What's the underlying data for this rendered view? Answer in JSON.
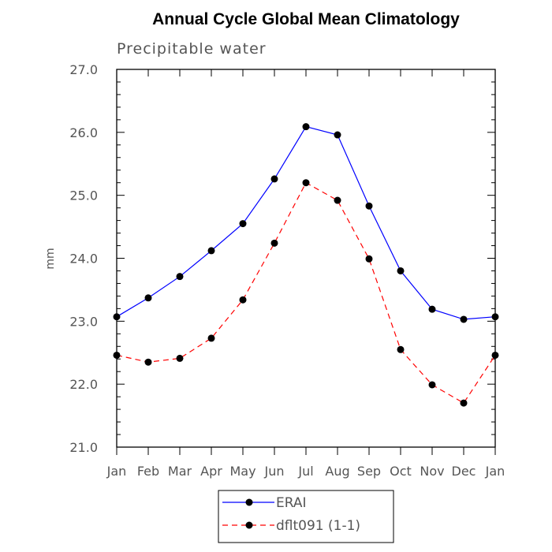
{
  "chart_data": {
    "type": "line",
    "title": "Annual Cycle Global Mean Climatology",
    "subtitle": "Precipitable water",
    "xlabel": "",
    "ylabel": "mm",
    "categories": [
      "Jan",
      "Feb",
      "Mar",
      "Apr",
      "May",
      "Jun",
      "Jul",
      "Aug",
      "Sep",
      "Oct",
      "Nov",
      "Dec",
      "Jan"
    ],
    "ylim": [
      21.0,
      27.0
    ],
    "yticks": [
      "21.0",
      "22.0",
      "23.0",
      "24.0",
      "25.0",
      "26.0",
      "27.0"
    ],
    "series": [
      {
        "name": "ERAI",
        "color": "#0000ff",
        "style": "solid",
        "values": [
          23.07,
          23.37,
          23.71,
          24.12,
          24.55,
          25.26,
          26.09,
          25.96,
          24.83,
          23.8,
          23.19,
          23.03,
          23.07
        ]
      },
      {
        "name": "dflt091 (1-1)",
        "color": "#ff0000",
        "style": "dashed",
        "values": [
          22.46,
          22.35,
          22.41,
          22.73,
          23.34,
          24.24,
          25.2,
          24.92,
          23.99,
          22.55,
          21.99,
          21.7,
          22.46
        ]
      }
    ],
    "marker_color": "#000000",
    "legend_position": "bottom-center"
  }
}
